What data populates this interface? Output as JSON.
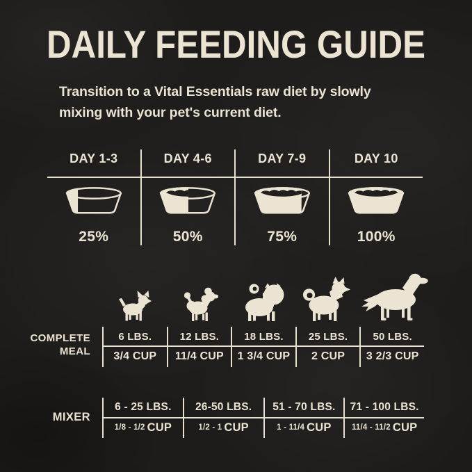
{
  "colors": {
    "background": "#211f1d",
    "cream": "#ece4d3",
    "line": "#e9e1d0"
  },
  "header": {
    "title": "DAILY FEEDING GUIDE",
    "subtitle_line1": "Transition to a Vital Essentials raw diet by slowly",
    "subtitle_line2": "mixing with your pet's current diet."
  },
  "transition_table": {
    "columns": [
      {
        "day": "DAY 1-3",
        "bowl_fill_percent": 25,
        "percent_label": "25%",
        "icon": "dog-bowl-quarter-full-icon"
      },
      {
        "day": "DAY 4-6",
        "bowl_fill_percent": 50,
        "percent_label": "50%",
        "icon": "dog-bowl-half-full-icon"
      },
      {
        "day": "DAY 7-9",
        "bowl_fill_percent": 75,
        "percent_label": "75%",
        "icon": "dog-bowl-three-quarter-full-icon"
      },
      {
        "day": "DAY 10",
        "bowl_fill_percent": 100,
        "percent_label": "100%",
        "icon": "dog-bowl-full-icon"
      }
    ]
  },
  "complete_meal_table": {
    "row_label_line1": "COMPLETE",
    "row_label_line2": "MEAL",
    "columns": [
      {
        "dog_icon": "chihuahua-icon",
        "weight": "6 LBS.",
        "amount": "3/4 CUP"
      },
      {
        "dog_icon": "poodle-icon",
        "weight": "12 LBS.",
        "amount": "11/4 CUP"
      },
      {
        "dog_icon": "pug-icon",
        "weight": "18 LBS.",
        "amount": "1 3/4 CUP"
      },
      {
        "dog_icon": "husky-icon",
        "weight": "25 LBS.",
        "amount": "2 CUP"
      },
      {
        "dog_icon": "retriever-icon",
        "weight": "50 LBS.",
        "amount": "3 2/3 CUP"
      }
    ]
  },
  "mixer_table": {
    "row_label": "MIXER",
    "columns": [
      {
        "weight": "6 - 25 LBS.",
        "amount_range": "1/8 - 1/2",
        "amount_unit": "CUP"
      },
      {
        "weight": "26-50 LBS.",
        "amount_range": "1/2 - 1",
        "amount_unit": "CUP"
      },
      {
        "weight": "51 - 70 LBS.",
        "amount_range": "1 - 11/4",
        "amount_unit": "CUP"
      },
      {
        "weight": "71 - 100 LBS.",
        "amount_range": "11/4 - 11/2",
        "amount_unit": "CUP"
      }
    ]
  }
}
